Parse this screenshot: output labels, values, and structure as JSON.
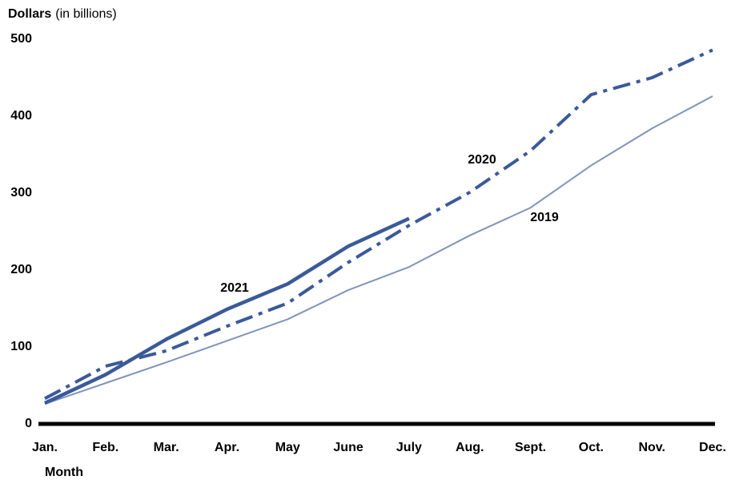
{
  "chart_data": {
    "type": "line",
    "y_label": "Dollars",
    "y_label_unit": "(in billions)",
    "x_label": "Month",
    "categories": [
      "Jan.",
      "Feb.",
      "Mar.",
      "Apr.",
      "May",
      "June",
      "July",
      "Aug.",
      "Sept.",
      "Oct.",
      "Nov.",
      "Dec."
    ],
    "series": [
      {
        "name": "2021",
        "color": "#3a5a99",
        "line_width": 4.5,
        "line_style": "solid",
        "values": [
          27,
          64,
          110,
          149,
          182,
          231,
          267,
          null,
          null,
          null,
          null,
          null
        ]
      },
      {
        "name": "2020",
        "color": "#3a5a99",
        "line_width": 4,
        "line_style": "dashdot",
        "values": [
          33,
          75,
          95,
          127,
          157,
          210,
          258,
          301,
          355,
          428,
          450,
          486
        ]
      },
      {
        "name": "2019",
        "color": "#7f94bb",
        "line_width": 2,
        "line_style": "solid",
        "values": [
          26,
          53,
          80,
          108,
          136,
          174,
          204,
          245,
          281,
          336,
          384,
          426
        ]
      }
    ],
    "ylim": [
      0,
      500
    ],
    "yticks": [
      0,
      100,
      200,
      300,
      400,
      500
    ],
    "grid": false
  }
}
